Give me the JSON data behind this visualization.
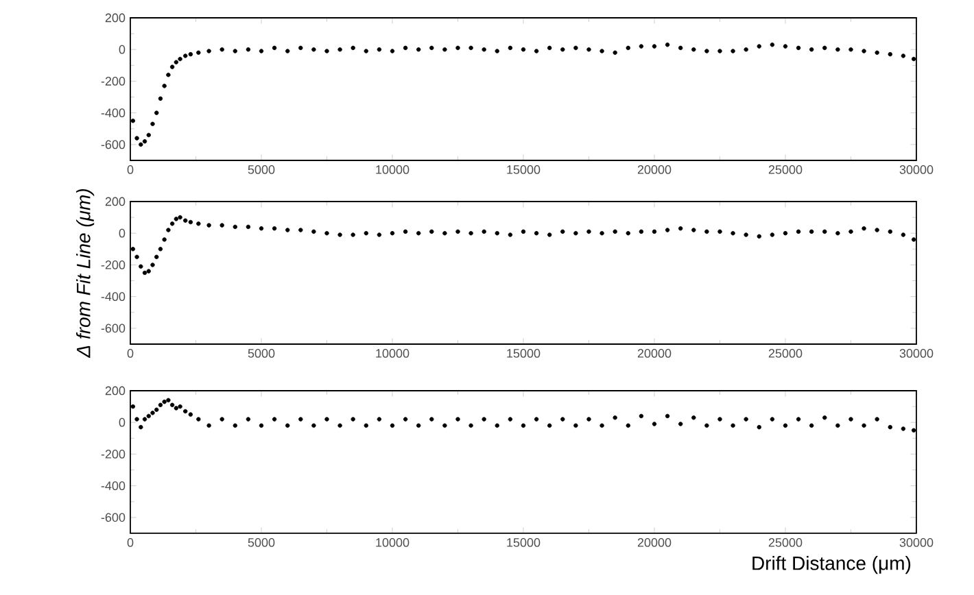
{
  "chart_data": [
    {
      "type": "scatter",
      "color": "#000000",
      "marker": "circle",
      "xlim": [
        0,
        30000
      ],
      "ylim": [
        -700,
        200
      ],
      "xticks": [
        0,
        5000,
        10000,
        15000,
        20000,
        25000,
        30000
      ],
      "yticks": [
        -600,
        -400,
        -200,
        0,
        200
      ],
      "x": [
        100,
        250,
        400,
        550,
        700,
        850,
        1000,
        1150,
        1300,
        1450,
        1600,
        1750,
        1900,
        2100,
        2300,
        2600,
        3000,
        3500,
        4000,
        4500,
        5000,
        5500,
        6000,
        6500,
        7000,
        7500,
        8000,
        8500,
        9000,
        9500,
        10000,
        10500,
        11000,
        11500,
        12000,
        12500,
        13000,
        13500,
        14000,
        14500,
        15000,
        15500,
        16000,
        16500,
        17000,
        17500,
        18000,
        18500,
        19000,
        19500,
        20000,
        20500,
        21000,
        21500,
        22000,
        22500,
        23000,
        23500,
        24000,
        24500,
        25000,
        25500,
        26000,
        26500,
        27000,
        27500,
        28000,
        28500,
        29000,
        29500,
        29900
      ],
      "values": [
        -450,
        -560,
        -600,
        -580,
        -540,
        -470,
        -400,
        -310,
        -230,
        -160,
        -110,
        -80,
        -60,
        -40,
        -30,
        -20,
        -10,
        0,
        -10,
        0,
        -10,
        10,
        -10,
        10,
        0,
        -10,
        0,
        10,
        -10,
        0,
        -10,
        10,
        0,
        10,
        0,
        10,
        10,
        0,
        -10,
        10,
        0,
        -10,
        10,
        0,
        10,
        0,
        -10,
        -20,
        10,
        20,
        20,
        30,
        10,
        0,
        -10,
        -10,
        -10,
        0,
        20,
        30,
        20,
        10,
        0,
        10,
        0,
        0,
        -10,
        -20,
        -30,
        -40,
        -60
      ]
    },
    {
      "type": "scatter",
      "color": "#000000",
      "marker": "circle",
      "xlim": [
        0,
        30000
      ],
      "ylim": [
        -700,
        200
      ],
      "xticks": [
        0,
        5000,
        10000,
        15000,
        20000,
        25000,
        30000
      ],
      "yticks": [
        -600,
        -400,
        -200,
        0,
        200
      ],
      "ylabel": "Δ from Fit Line (μm)",
      "x": [
        100,
        250,
        400,
        550,
        700,
        850,
        1000,
        1150,
        1300,
        1450,
        1600,
        1750,
        1900,
        2100,
        2300,
        2600,
        3000,
        3500,
        4000,
        4500,
        5000,
        5500,
        6000,
        6500,
        7000,
        7500,
        8000,
        8500,
        9000,
        9500,
        10000,
        10500,
        11000,
        11500,
        12000,
        12500,
        13000,
        13500,
        14000,
        14500,
        15000,
        15500,
        16000,
        16500,
        17000,
        17500,
        18000,
        18500,
        19000,
        19500,
        20000,
        20500,
        21000,
        21500,
        22000,
        22500,
        23000,
        23500,
        24000,
        24500,
        25000,
        25500,
        26000,
        26500,
        27000,
        27500,
        28000,
        28500,
        29000,
        29500,
        29900
      ],
      "values": [
        -100,
        -150,
        -210,
        -250,
        -240,
        -200,
        -150,
        -100,
        -40,
        20,
        60,
        90,
        100,
        80,
        70,
        60,
        50,
        50,
        40,
        40,
        30,
        30,
        20,
        20,
        10,
        0,
        -10,
        -10,
        0,
        -10,
        0,
        10,
        0,
        10,
        0,
        10,
        0,
        10,
        0,
        -10,
        10,
        0,
        -10,
        10,
        0,
        10,
        0,
        10,
        0,
        10,
        10,
        20,
        30,
        20,
        10,
        10,
        0,
        -10,
        -20,
        -10,
        0,
        10,
        10,
        10,
        0,
        10,
        30,
        20,
        10,
        -10,
        -40
      ]
    },
    {
      "type": "scatter",
      "color": "#000000",
      "marker": "circle",
      "xlim": [
        0,
        30000
      ],
      "ylim": [
        -700,
        200
      ],
      "xticks": [
        0,
        5000,
        10000,
        15000,
        20000,
        25000,
        30000
      ],
      "yticks": [
        -600,
        -400,
        -200,
        0,
        200
      ],
      "xlabel": "Drift Distance (μm)",
      "x": [
        100,
        250,
        400,
        550,
        700,
        850,
        1000,
        1150,
        1300,
        1450,
        1600,
        1750,
        1900,
        2100,
        2300,
        2600,
        3000,
        3500,
        4000,
        4500,
        5000,
        5500,
        6000,
        6500,
        7000,
        7500,
        8000,
        8500,
        9000,
        9500,
        10000,
        10500,
        11000,
        11500,
        12000,
        12500,
        13000,
        13500,
        14000,
        14500,
        15000,
        15500,
        16000,
        16500,
        17000,
        17500,
        18000,
        18500,
        19000,
        19500,
        20000,
        20500,
        21000,
        21500,
        22000,
        22500,
        23000,
        23500,
        24000,
        24500,
        25000,
        25500,
        26000,
        26500,
        27000,
        27500,
        28000,
        28500,
        29000,
        29500,
        29900
      ],
      "values": [
        100,
        20,
        -30,
        20,
        40,
        60,
        80,
        110,
        130,
        140,
        110,
        90,
        100,
        70,
        50,
        20,
        -20,
        20,
        -20,
        20,
        -20,
        20,
        -20,
        20,
        -20,
        20,
        -20,
        20,
        -20,
        20,
        -20,
        20,
        -20,
        20,
        -20,
        20,
        -20,
        20,
        -20,
        20,
        -20,
        20,
        -20,
        20,
        -20,
        20,
        -20,
        30,
        -20,
        40,
        -10,
        40,
        -10,
        30,
        -20,
        20,
        -20,
        20,
        -30,
        20,
        -20,
        20,
        -20,
        30,
        -20,
        20,
        -20,
        20,
        -30,
        -40,
        -50
      ]
    }
  ]
}
